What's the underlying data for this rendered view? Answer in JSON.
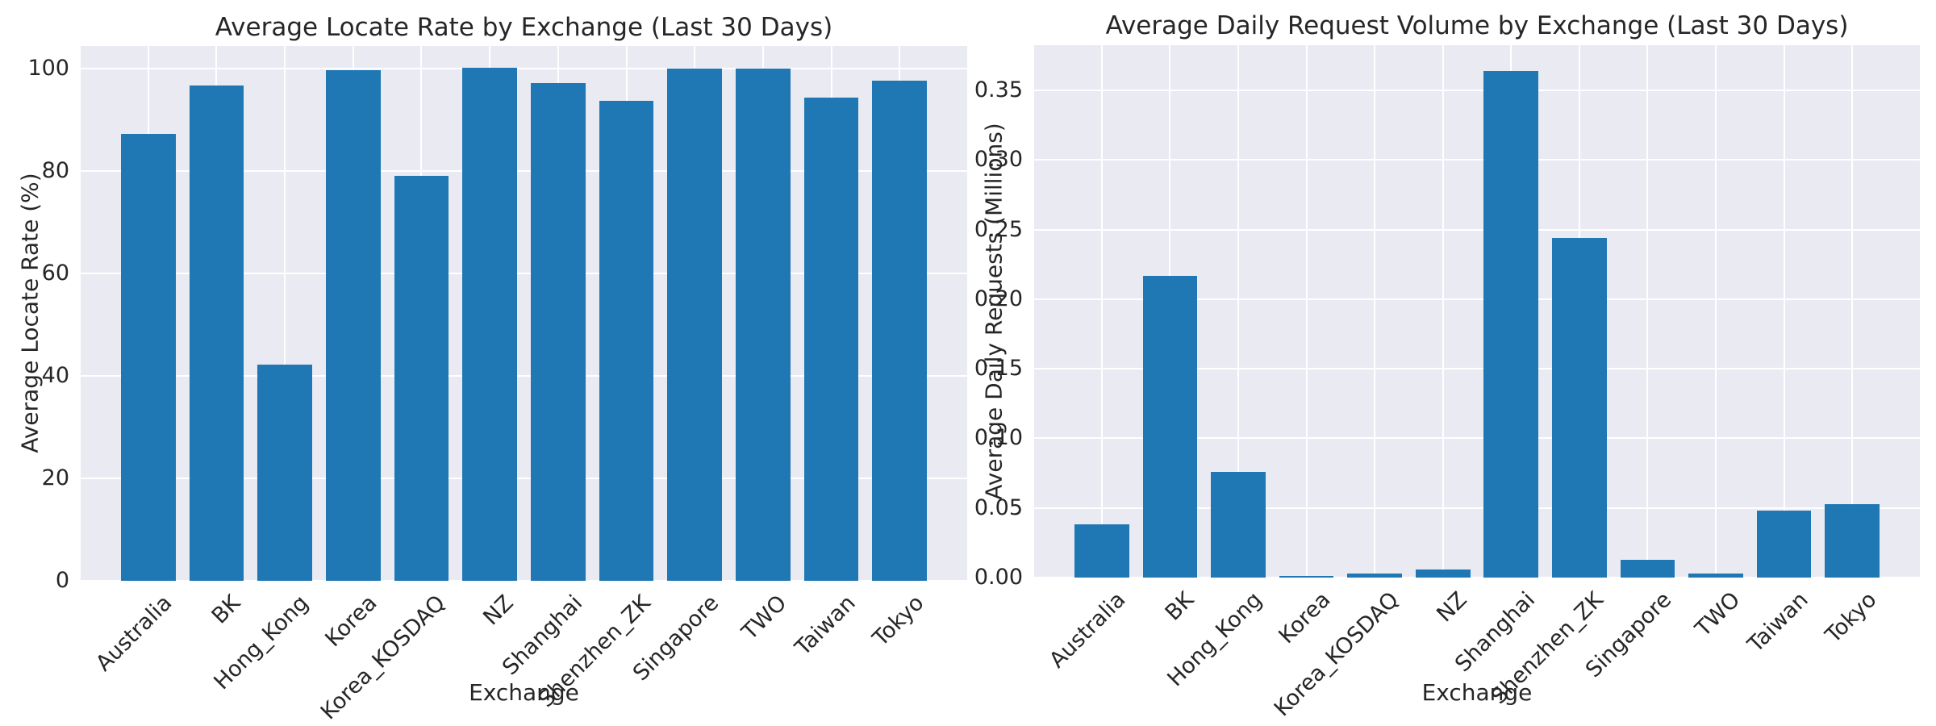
{
  "figure": {
    "background": "#ffffff"
  },
  "style": {
    "bar_color": "#1f77b4",
    "plot_background": "#eaeaf2",
    "grid_color": "#ffffff",
    "text_color": "#262626"
  },
  "chart_data": [
    {
      "type": "bar",
      "title": "Average Locate Rate by Exchange (Last 30 Days)",
      "xlabel": "Exchange",
      "ylabel": "Average Locate Rate (%)",
      "categories": [
        "Australia",
        "BK",
        "Hong_Kong",
        "Korea",
        "Korea_KOSDAQ",
        "NZ",
        "Shanghai",
        "Shenzhen_ZK",
        "Singapore",
        "TWO",
        "Taiwan",
        "Tokyo"
      ],
      "values": [
        87.3,
        96.7,
        42.2,
        99.6,
        79.0,
        100.1,
        97.2,
        93.7,
        100.0,
        100.0,
        94.3,
        97.7
      ],
      "yticks": [
        0,
        20,
        40,
        60,
        80,
        100
      ],
      "ytick_labels": [
        "0",
        "20",
        "40",
        "60",
        "80",
        "100"
      ],
      "ylim": [
        0,
        104.4
      ],
      "grid": true,
      "legend": null
    },
    {
      "type": "bar",
      "title": "Average Daily Request Volume by Exchange (Last 30 Days)",
      "xlabel": "Exchange",
      "ylabel": "Average Daily Requests (Millions)",
      "categories": [
        "Australia",
        "BK",
        "Hong_Kong",
        "Korea",
        "Korea_KOSDAQ",
        "NZ",
        "Shanghai",
        "Shenzhen_ZK",
        "Singapore",
        "TWO",
        "Taiwan",
        "Tokyo"
      ],
      "values": [
        0.038,
        0.217,
        0.076,
        0.001,
        0.003,
        0.006,
        0.364,
        0.244,
        0.013,
        0.003,
        0.048,
        0.053
      ],
      "yticks": [
        0.0,
        0.05,
        0.1,
        0.15,
        0.2,
        0.25,
        0.3,
        0.35
      ],
      "ytick_labels": [
        "0.00",
        "0.05",
        "0.10",
        "0.15",
        "0.20",
        "0.25",
        "0.30",
        "0.35"
      ],
      "ylim": [
        0,
        0.3825
      ],
      "grid": true,
      "legend": null
    }
  ]
}
